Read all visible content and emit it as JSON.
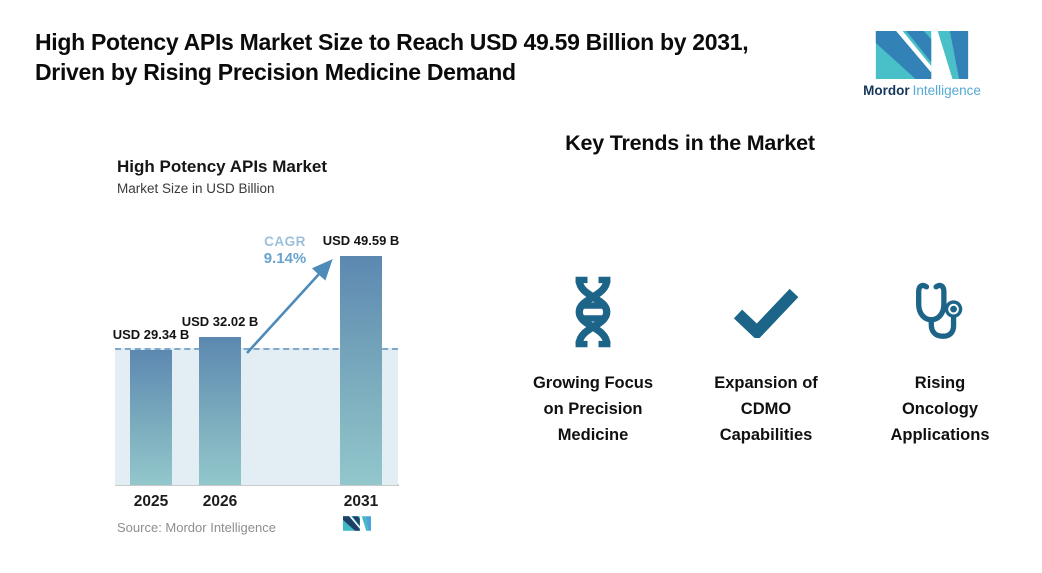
{
  "header": {
    "title_lines": [
      "High Potency APIs Market Size to Reach USD 49.59 Billion by 2031,",
      "Driven by Rising Precision Medicine Demand"
    ],
    "logo": {
      "brand_bold": "Mordor",
      "brand_light": "Intelligence"
    }
  },
  "chart": {
    "title": "High Potency APIs Market",
    "subtitle": "Market Size in USD Billion",
    "cagr_label": "CAGR",
    "cagr_value": "9.14%",
    "source": "Source: Mordor Intelligence"
  },
  "chart_data": {
    "type": "bar",
    "title": "High Potency APIs Market",
    "ylabel": "Market Size in USD Billion",
    "categories": [
      "2025",
      "2026",
      "2031"
    ],
    "values": [
      29.34,
      32.02,
      49.59
    ],
    "bar_labels": [
      "USD 29.34 B",
      "USD 32.02 B",
      "USD 49.59 B"
    ],
    "annotations": {
      "cagr": "9.14%",
      "cagr_period": "2026-2031"
    },
    "baseline_reference_value": 29.34,
    "grid": false,
    "legend": "none",
    "colors": {
      "bar_top": "#5c88b0",
      "bar_bottom": "#92c7cc",
      "background_band": "#e3edf4",
      "dashed_line": "#7fa9ca",
      "arrow": "#4e8bb9",
      "icon_accent": "#1d6489",
      "brand_teal": "#49bfc8",
      "brand_blue": "#3282b8",
      "brand_navy": "#16365c"
    }
  },
  "trends": {
    "heading": "Key Trends in the Market",
    "items": [
      {
        "icon": "dna-icon",
        "label_lines": [
          "Growing Focus",
          "on Precision",
          "Medicine"
        ]
      },
      {
        "icon": "checkmark-icon",
        "label_lines": [
          "Expansion of",
          "CDMO",
          "Capabilities"
        ]
      },
      {
        "icon": "stethoscope-icon",
        "label_lines": [
          "Rising",
          "Oncology",
          "Applications"
        ]
      }
    ]
  }
}
